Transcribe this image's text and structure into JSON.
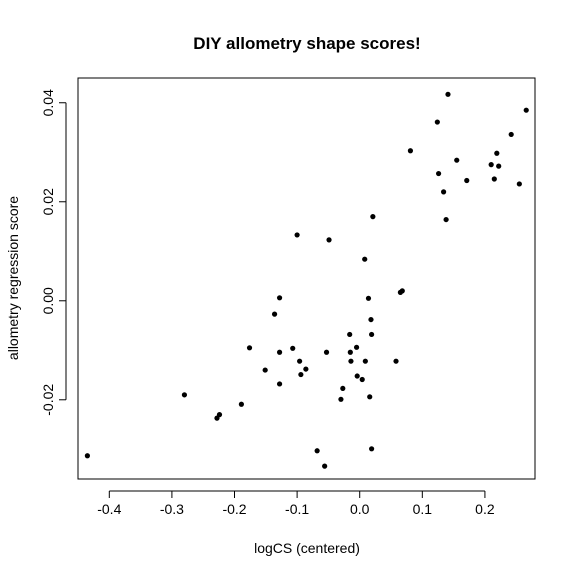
{
  "chart_data": {
    "type": "scatter",
    "title": "DIY allometry shape scores!",
    "xlabel": "logCS (centered)",
    "ylabel": "allometry regression score",
    "xlim": [
      -0.45,
      0.28
    ],
    "ylim": [
      -0.036,
      0.045
    ],
    "xticks": [
      -0.4,
      -0.3,
      -0.2,
      -0.1,
      0.0,
      0.1,
      0.2
    ],
    "xtick_labels": [
      "-0.4",
      "-0.3",
      "-0.2",
      "-0.1",
      "0.0",
      "0.1",
      "0.2"
    ],
    "yticks": [
      -0.02,
      0.0,
      0.02,
      0.04
    ],
    "ytick_labels": [
      "-0.02",
      "0.00",
      "0.02",
      "0.04"
    ],
    "grid": false,
    "legend": "none",
    "points": [
      {
        "x": -0.435,
        "y": -0.0313
      },
      {
        "x": -0.28,
        "y": -0.019
      },
      {
        "x": -0.228,
        "y": -0.0237
      },
      {
        "x": -0.224,
        "y": -0.023
      },
      {
        "x": -0.189,
        "y": -0.0209
      },
      {
        "x": -0.176,
        "y": -0.0095
      },
      {
        "x": -0.151,
        "y": -0.014
      },
      {
        "x": -0.136,
        "y": -0.0027
      },
      {
        "x": -0.128,
        "y": 0.0006
      },
      {
        "x": -0.128,
        "y": -0.0104
      },
      {
        "x": -0.128,
        "y": -0.0168
      },
      {
        "x": -0.107,
        "y": -0.0096
      },
      {
        "x": -0.1,
        "y": 0.0133
      },
      {
        "x": -0.096,
        "y": -0.0122
      },
      {
        "x": -0.094,
        "y": -0.0149
      },
      {
        "x": -0.086,
        "y": -0.0138
      },
      {
        "x": -0.068,
        "y": -0.0303
      },
      {
        "x": -0.056,
        "y": -0.0334
      },
      {
        "x": -0.053,
        "y": -0.0104
      },
      {
        "x": -0.049,
        "y": 0.0123
      },
      {
        "x": -0.03,
        "y": -0.0199
      },
      {
        "x": -0.027,
        "y": -0.0177
      },
      {
        "x": -0.016,
        "y": -0.0068
      },
      {
        "x": -0.015,
        "y": -0.0104
      },
      {
        "x": -0.014,
        "y": -0.0122
      },
      {
        "x": -0.005,
        "y": -0.0094
      },
      {
        "x": -0.004,
        "y": -0.0152
      },
      {
        "x": 0.004,
        "y": -0.0159
      },
      {
        "x": 0.008,
        "y": 0.0084
      },
      {
        "x": 0.009,
        "y": -0.0122
      },
      {
        "x": 0.014,
        "y": 0.0005
      },
      {
        "x": 0.016,
        "y": -0.0194
      },
      {
        "x": 0.018,
        "y": -0.0038
      },
      {
        "x": 0.019,
        "y": -0.0068
      },
      {
        "x": 0.019,
        "y": -0.0299
      },
      {
        "x": 0.021,
        "y": 0.017
      },
      {
        "x": 0.058,
        "y": -0.0122
      },
      {
        "x": 0.065,
        "y": 0.0017
      },
      {
        "x": 0.068,
        "y": 0.002
      },
      {
        "x": 0.081,
        "y": 0.0303
      },
      {
        "x": 0.124,
        "y": 0.0361
      },
      {
        "x": 0.126,
        "y": 0.0257
      },
      {
        "x": 0.134,
        "y": 0.022
      },
      {
        "x": 0.138,
        "y": 0.0164
      },
      {
        "x": 0.141,
        "y": 0.0417
      },
      {
        "x": 0.155,
        "y": 0.0284
      },
      {
        "x": 0.171,
        "y": 0.0243
      },
      {
        "x": 0.21,
        "y": 0.0275
      },
      {
        "x": 0.215,
        "y": 0.0246
      },
      {
        "x": 0.219,
        "y": 0.0298
      },
      {
        "x": 0.222,
        "y": 0.0272
      },
      {
        "x": 0.242,
        "y": 0.0336
      },
      {
        "x": 0.255,
        "y": 0.0236
      },
      {
        "x": 0.266,
        "y": 0.0385
      }
    ]
  }
}
